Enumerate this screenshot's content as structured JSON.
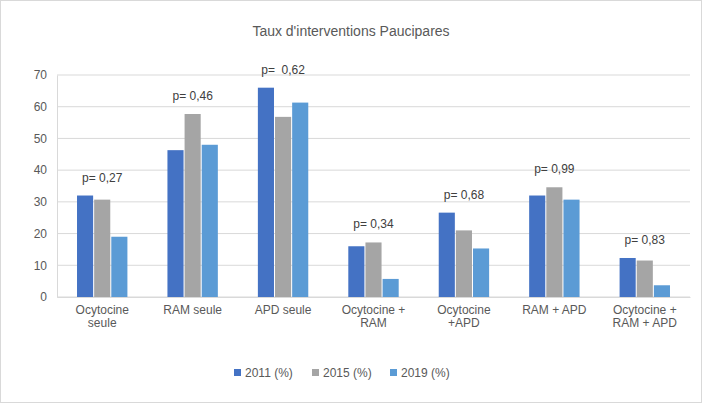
{
  "chart_data": {
    "type": "bar",
    "title": "Taux d'interventions Paucipares",
    "categories": [
      "Ocytocine seule",
      "RAM seule",
      "APD seule",
      "Ocytocine + RAM",
      "Ocytocine +APD",
      "RAM + APD",
      "Ocytocine + RAM + APD"
    ],
    "series": [
      {
        "name": "2011 (%)",
        "color": "#4472c4",
        "values": [
          32,
          46.3,
          66,
          16,
          26.6,
          32,
          12.3
        ]
      },
      {
        "name": "2015 (%)",
        "color": "#a5a5a5",
        "values": [
          30.7,
          57.7,
          56.8,
          17.2,
          21,
          34.6,
          11.5
        ]
      },
      {
        "name": "2019 (%)",
        "color": "#5b9bd5",
        "values": [
          19,
          48,
          61.3,
          5.7,
          15.3,
          30.7,
          3.7
        ]
      }
    ],
    "annotations": [
      "p= 0,27",
      "p= 0,46",
      "p=  0,62",
      "p= 0,34",
      "p= 0,68",
      "p= 0,99",
      "p= 0,83"
    ],
    "ylim": [
      0,
      70
    ],
    "yticks": [
      0,
      10,
      20,
      30,
      40,
      50,
      60,
      70
    ],
    "grid": true,
    "legend": "bottom"
  }
}
